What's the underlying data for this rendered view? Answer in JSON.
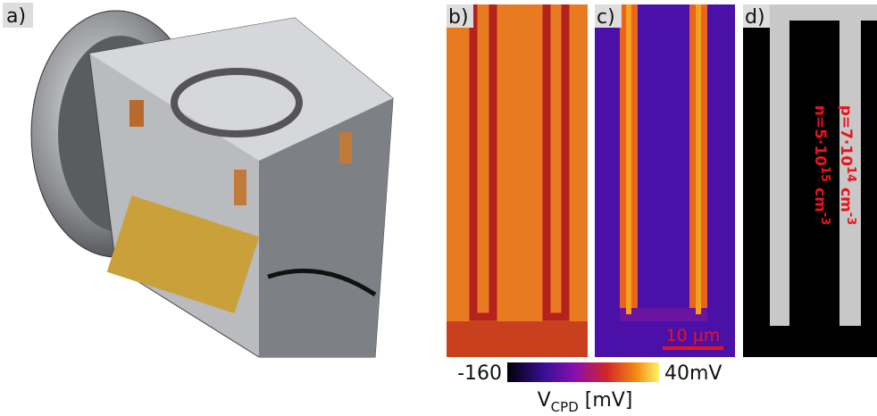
{
  "panels": {
    "a": "a)",
    "b": "b)",
    "c": "c)",
    "d": "d)"
  },
  "scale_bar": "10 µm",
  "colorbar": {
    "min_label": "-160",
    "max_label": "40mV",
    "label_main": "V",
    "label_sub": "CPD",
    "label_unit": " [mV]"
  },
  "doping": {
    "n": {
      "base": "n=5·10",
      "exp": "15",
      "unit": " cm",
      "unit_exp": "-3"
    },
    "p": {
      "base": "p=7·10",
      "exp": "14",
      "unit": " cm",
      "unit_exp": "-3"
    }
  }
}
